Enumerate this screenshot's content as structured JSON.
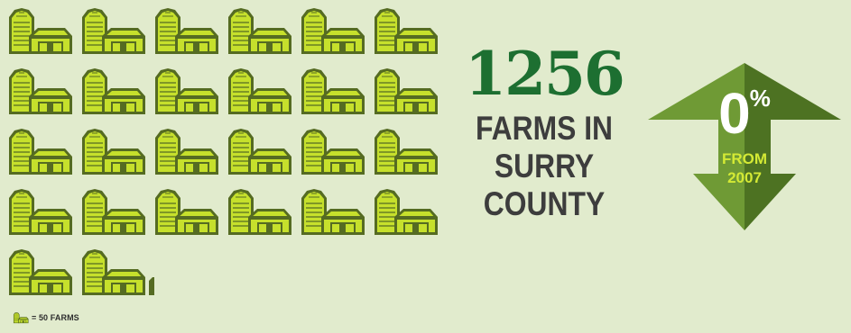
{
  "chart_data": {
    "type": "pictograph",
    "units_per_icon": 50,
    "full_icons": 25,
    "partial_icon_fraction": 0.12,
    "total_value": 1256,
    "legend_label": "= 50 FARMS"
  },
  "headline": {
    "number": "1256",
    "caption": "FARMS IN\nSURRY\nCOUNTY"
  },
  "change": {
    "percent": "0",
    "percent_sign": "%",
    "caption": "FROM\n2007",
    "direction": "no-change"
  },
  "colors": {
    "background": "#e1ebcd",
    "barn_fill": "#c6e02c",
    "barn_outline": "#556b22",
    "number": "#1d6f31",
    "caption": "#3d3d3d",
    "arrow_light": "#6f9a35",
    "arrow_dark": "#4d7222",
    "arrow_text": "#d4ea35"
  },
  "icons": {
    "pictogram": "barn-icon",
    "arrow": "double-arrow-icon"
  }
}
